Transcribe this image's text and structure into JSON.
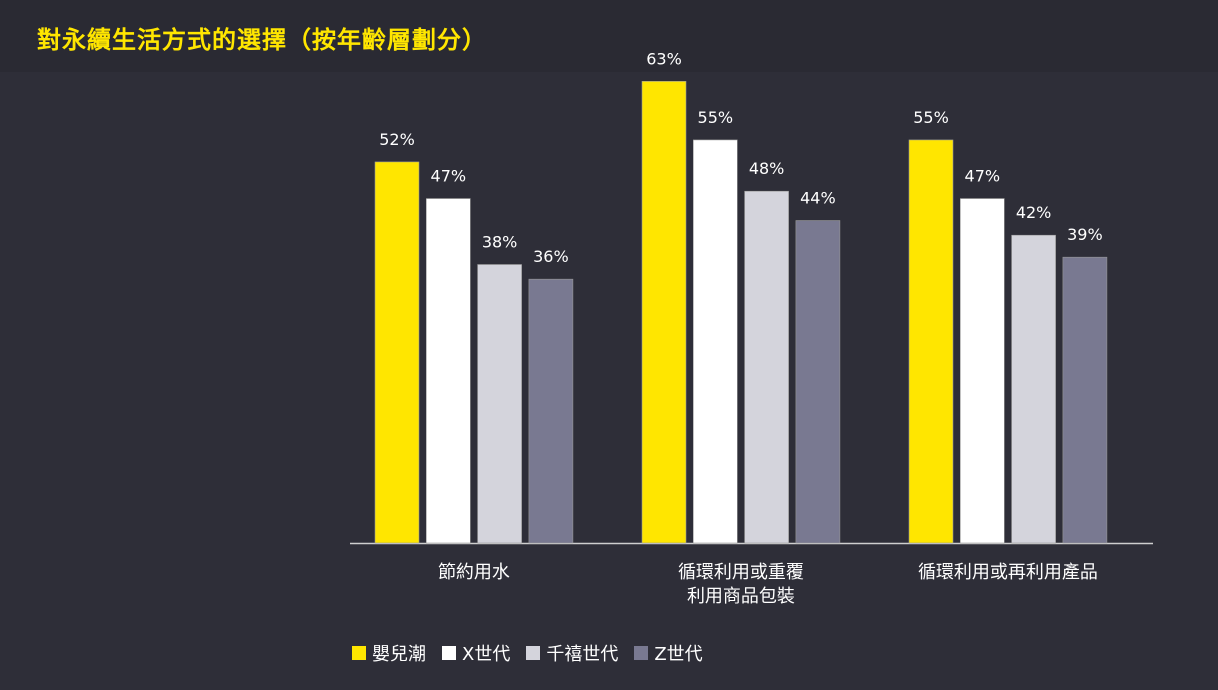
{
  "chart_data": {
    "type": "bar",
    "title": "對永續生活方式的選擇（按年齡層劃分）",
    "xlabel": "",
    "ylabel": "",
    "ylim": [
      0,
      70
    ],
    "grid": false,
    "legend_position": "bottom-left",
    "value_suffix": "%",
    "categories": [
      [
        "節約用水"
      ],
      [
        "循環利用或重覆",
        "利用商品包裝"
      ],
      [
        "循環利用或再利用產品"
      ]
    ],
    "series": [
      {
        "name": "嬰兒潮",
        "color": "#ffe600",
        "values": [
          52,
          63,
          55
        ]
      },
      {
        "name": "X世代",
        "color": "#ffffff",
        "values": [
          47,
          55,
          47
        ]
      },
      {
        "name": "千禧世代",
        "color": "#d4d4dc",
        "values": [
          38,
          48,
          42
        ]
      },
      {
        "name": "Z世代",
        "color": "#797991",
        "values": [
          36,
          44,
          39
        ]
      }
    ]
  },
  "colors": {
    "background": "#2e2e38",
    "title": "#ffe600",
    "text": "#ffffff",
    "axis": "#cfcfcf"
  }
}
